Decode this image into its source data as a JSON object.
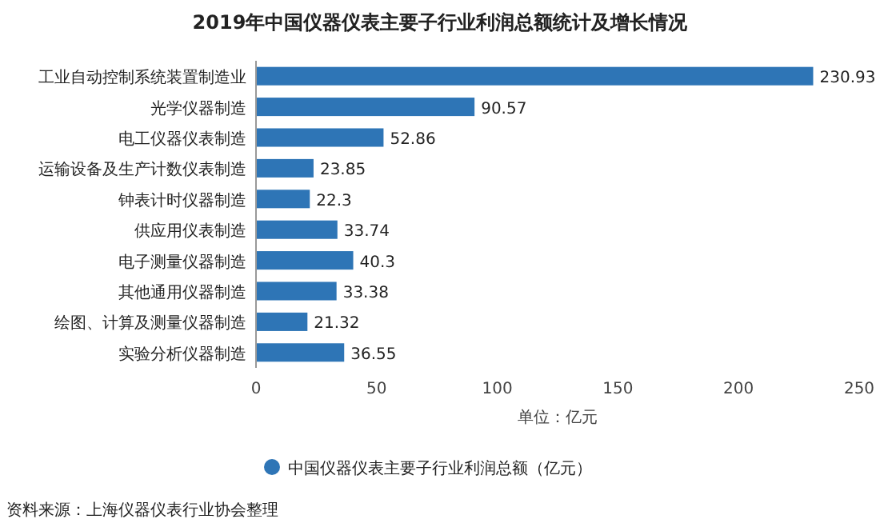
{
  "chart_data": {
    "type": "bar",
    "orientation": "horizontal",
    "title": "2019年中国仪器仪表主要子行业利润总额统计及增长情况",
    "categories": [
      "工业自动控制系统装置制造业",
      "光学仪器制造",
      "电工仪器仪表制造",
      "运输设备及生产计数仪表制造",
      "钟表计时仪器制造",
      "供应用仪表制造",
      "电子测量仪器制造",
      "其他通用仪器制造",
      "绘图、计算及测量仪器制造",
      "实验分析仪器制造"
    ],
    "series": [
      {
        "name": "中国仪器仪表主要子行业利润总额（亿元）",
        "color": "#2e75b6",
        "values": [
          230.93,
          90.57,
          52.86,
          23.85,
          22.3,
          33.74,
          40.3,
          33.38,
          21.32,
          36.55
        ]
      }
    ],
    "xlim": [
      0,
      250
    ],
    "xticks": [
      0,
      50,
      100,
      150,
      200,
      250
    ],
    "xlabel": "单位：亿元",
    "data_labels": true,
    "legend": "bottom",
    "grid": false,
    "annotations": [
      "资料来源：上海仪器仪表行业协会整理"
    ]
  }
}
